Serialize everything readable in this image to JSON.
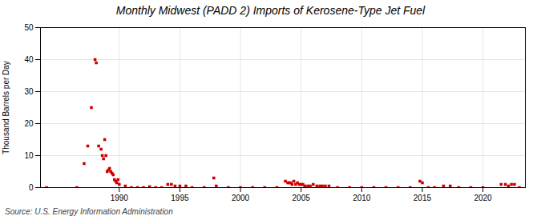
{
  "chart_data": {
    "type": "scatter",
    "title": "Monthly Midwest (PADD 2) Imports of Kerosene-Type Jet Fuel",
    "ylabel": "Thousand Barrels per Day",
    "annotations": [
      "Source: U.S. Energy Information Administration"
    ],
    "color": "#cc0000",
    "marker": "square",
    "grid": true,
    "xlim": [
      1983.5,
      2023.5
    ],
    "ylim": [
      0,
      50
    ],
    "xticks": [
      1990,
      1995,
      2000,
      2005,
      2010,
      2015,
      2020
    ],
    "yticks": [
      0,
      10,
      20,
      30,
      40,
      50
    ],
    "x": [
      1984.0,
      1986.5,
      1987.1,
      1987.4,
      1987.7,
      1988.0,
      1988.1,
      1988.3,
      1988.5,
      1988.6,
      1988.7,
      1988.8,
      1988.9,
      1989.0,
      1989.1,
      1989.2,
      1989.3,
      1989.4,
      1989.5,
      1989.6,
      1989.7,
      1989.8,
      1989.9,
      1990.0,
      1990.5,
      1991.0,
      1991.5,
      1992.0,
      1992.5,
      1993.0,
      1993.5,
      1994.0,
      1994.3,
      1994.6,
      1995.0,
      1995.5,
      1996.0,
      1997.0,
      1997.8,
      1998.0,
      1999.0,
      2000.0,
      2001.0,
      2002.0,
      2003.0,
      2003.7,
      2003.9,
      2004.0,
      2004.15,
      2004.25,
      2004.4,
      2004.55,
      2004.7,
      2004.85,
      2005.0,
      2005.15,
      2005.3,
      2005.55,
      2005.75,
      2006.0,
      2006.3,
      2006.55,
      2006.75,
      2007.0,
      2007.3,
      2008.0,
      2009.0,
      2010.0,
      2011.0,
      2012.0,
      2013.0,
      2014.0,
      2014.8,
      2015.0,
      2015.5,
      2016.0,
      2016.75,
      2017.3,
      2018.0,
      2019.0,
      2020.0,
      2021.5,
      2021.85,
      2022.1,
      2022.35,
      2022.6,
      2023.0
    ],
    "values": [
      0.0,
      0.0,
      7.5,
      13.0,
      25.0,
      40.0,
      39.0,
      13.0,
      12.0,
      10.0,
      9.0,
      15.0,
      10.0,
      5.0,
      5.5,
      6.0,
      5.0,
      4.5,
      4.0,
      2.5,
      2.0,
      1.5,
      2.5,
      1.0,
      0.5,
      0.0,
      0.0,
      0.0,
      0.3,
      0.0,
      0.0,
      1.0,
      1.0,
      0.5,
      0.5,
      0.5,
      0.0,
      0.0,
      3.0,
      0.5,
      0.0,
      0.0,
      0.0,
      0.0,
      0.0,
      2.0,
      1.5,
      1.5,
      1.5,
      1.0,
      2.0,
      1.0,
      1.5,
      1.0,
      1.0,
      1.0,
      0.5,
      0.5,
      0.5,
      1.0,
      0.5,
      0.5,
      0.5,
      0.5,
      0.5,
      0.0,
      0.0,
      0.0,
      0.0,
      0.0,
      0.0,
      0.0,
      2.0,
      1.5,
      0.0,
      0.0,
      0.5,
      0.5,
      0.0,
      0.0,
      0.0,
      1.0,
      1.0,
      0.5,
      1.0,
      1.0,
      0.0
    ]
  }
}
